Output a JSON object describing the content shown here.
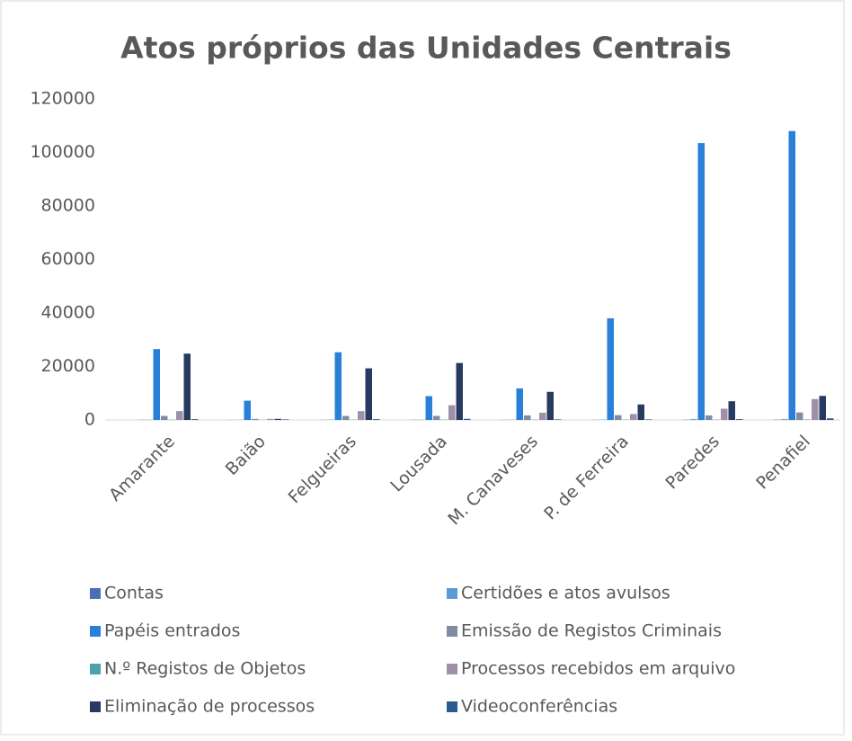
{
  "chart_data": {
    "type": "bar",
    "title": "Atos próprios das Unidades Centrais",
    "categories": [
      "Amarante",
      "Baião",
      "Felgueiras",
      "Lousada",
      "M. Canaveses",
      "P. de Ferreira",
      "Paredes",
      "Penafiel"
    ],
    "series": [
      {
        "name": "Contas",
        "color": "#4a6fb5",
        "values": [
          50,
          30,
          50,
          50,
          40,
          50,
          80,
          100
        ]
      },
      {
        "name": "Certidões e atos avulsos",
        "color": "#5b9bd5",
        "values": [
          100,
          50,
          100,
          100,
          80,
          100,
          300,
          300
        ]
      },
      {
        "name": "Papéis entrados",
        "color": "#2a7fd8",
        "values": [
          26500,
          7200,
          25300,
          8900,
          11800,
          38000,
          103500,
          108000
        ]
      },
      {
        "name": "Emissão de Registos Criminais",
        "color": "#7f8ca3",
        "values": [
          1500,
          400,
          1500,
          1500,
          1700,
          1800,
          1700,
          2800
        ]
      },
      {
        "name": "N.º Registos de Objetos",
        "color": "#4aa3a8",
        "values": [
          100,
          50,
          100,
          100,
          80,
          100,
          100,
          150
        ]
      },
      {
        "name": "Processos recebidos em arquivo",
        "color": "#9d90a8",
        "values": [
          3300,
          400,
          3300,
          5500,
          2700,
          2200,
          4200,
          7800
        ]
      },
      {
        "name": "Eliminação de processos",
        "color": "#283a60",
        "values": [
          24800,
          400,
          19300,
          21300,
          10500,
          5800,
          7000,
          9000
        ]
      },
      {
        "name": "Videoconferências",
        "color": "#2b5d8c",
        "values": [
          300,
          200,
          300,
          400,
          200,
          200,
          300,
          600
        ]
      }
    ],
    "ylim": [
      0,
      120000
    ],
    "yticks": [
      0,
      20000,
      40000,
      60000,
      80000,
      100000,
      120000
    ],
    "grid": false,
    "legend": "bottom"
  }
}
